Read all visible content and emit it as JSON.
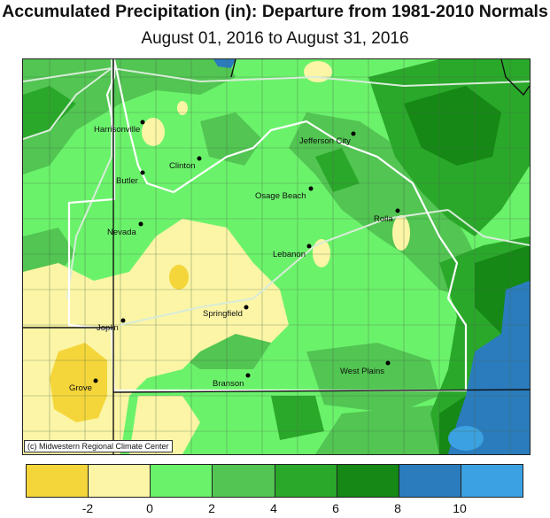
{
  "title": "Accumulated Precipitation (in): Departure from 1981-2010 Normals",
  "subtitle": "August 01, 2016 to August 31, 2016",
  "credit": "(c) Midwestern Regional Climate Center",
  "colors": {
    "neg2_and_below": "#f5d63a",
    "neg2_to_0": "#fcf5a6",
    "zero_to_2": "#6bf26b",
    "two_to_4": "#52c552",
    "four_to_6": "#2aa82a",
    "six_to_8": "#158815",
    "eight_to_10": "#2a7cbd",
    "ten_plus": "#3ca1e0"
  },
  "legend": {
    "swatches": [
      "#f5d63a",
      "#fcf5a6",
      "#6bf26b",
      "#52c552",
      "#2aa82a",
      "#158815",
      "#2a7cbd",
      "#3ca1e0"
    ],
    "ticks": [
      "-2",
      "0",
      "2",
      "4",
      "6",
      "8",
      "10"
    ]
  },
  "cities": [
    {
      "name": "Harrisonville"
    },
    {
      "name": "Jefferson City"
    },
    {
      "name": "Clinton"
    },
    {
      "name": "Butler"
    },
    {
      "name": "Osage Beach"
    },
    {
      "name": "Rolla"
    },
    {
      "name": "Nevada"
    },
    {
      "name": "Lebanon"
    },
    {
      "name": "Springfield"
    },
    {
      "name": "Joplin"
    },
    {
      "name": "West Plains"
    },
    {
      "name": "Branson"
    },
    {
      "name": "Grove"
    }
  ]
}
